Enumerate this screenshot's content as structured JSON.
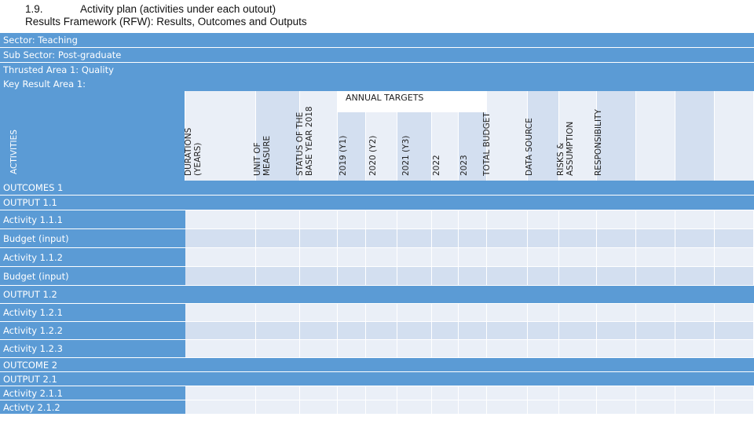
{
  "heading": {
    "number": "1.9.",
    "title": "Activity plan (activities under each outout)",
    "subtitle": "Results Framework (RFW): Results, Outcomes and Outputs"
  },
  "info_rows": [
    "Sector: Teaching",
    "Sub Sector: Post-graduate",
    "Thrusted Area 1: Quality",
    "Key Result Area 1:"
  ],
  "columns": {
    "activities": "ACTIVITIES",
    "durations": [
      "DURATIONS",
      "(YEARS)"
    ],
    "unit": [
      "UNIT OF",
      "MEASURE"
    ],
    "status": [
      "STATUS OF THE",
      "BASE YEAR 2018"
    ],
    "annual_targets": "ANNUAL TARGETS",
    "years": [
      "2019 (Y1)",
      "2020 (Y2)",
      "2021 (Y3)",
      "2022",
      "2023"
    ],
    "total_budget": "TOTAL BUDGET",
    "data_source": "DATA SOURCE",
    "risks": [
      "RISKS &",
      "ASSUMPTION"
    ],
    "responsibility": "RESPONSIBILITY"
  },
  "rows": [
    {
      "label": "OUTCOMES 1",
      "type": "section"
    },
    {
      "label": "OUTPUT 1.1",
      "type": "section"
    },
    {
      "label": "Activity 1.1.1",
      "type": "activity"
    },
    {
      "label": "Budget (input)",
      "type": "budget"
    },
    {
      "label": "Activity 1.1.2",
      "type": "activity"
    },
    {
      "label": "Budget (input)",
      "type": "budget"
    },
    {
      "label": "OUTPUT 1.2",
      "type": "section"
    },
    {
      "label": "Activity 1.2.1",
      "type": "activity"
    },
    {
      "label": "Activity 1.2.2",
      "type": "budget"
    },
    {
      "label": "Activity 1.2.3",
      "type": "activity"
    },
    {
      "label": "OUTCOME 2",
      "type": "section"
    },
    {
      "label": "OUTPUT 2.1",
      "type": "section"
    },
    {
      "label": "Activity 2.1.1",
      "type": "activity"
    },
    {
      "label": "Activty 2.1.2",
      "type": "activity"
    }
  ],
  "colors": {
    "blue": "#5b9bd5",
    "light": "#d3dff0",
    "pale": "#eaeff7"
  }
}
